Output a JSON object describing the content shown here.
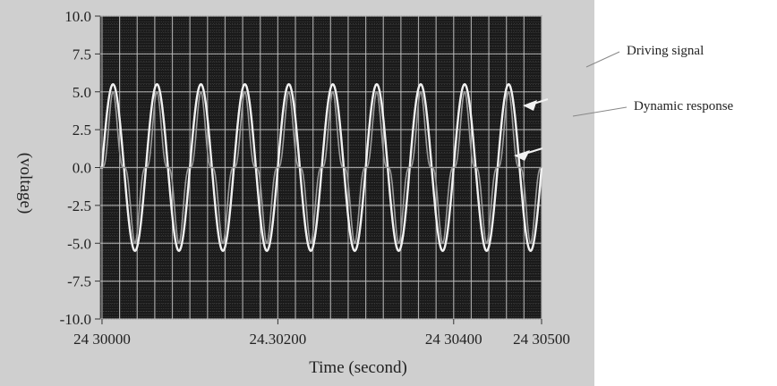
{
  "chart_data": {
    "type": "line",
    "xlabel": "Time (second)",
    "ylabel": "(voltage)",
    "xlim": [
      24.29998,
      24.305
    ],
    "ylim": [
      -10.0,
      10.0
    ],
    "x_tick_labels": [
      {
        "value": 24.3,
        "label": "24 30000"
      },
      {
        "value": 24.302,
        "label": "24.30200"
      },
      {
        "value": 24.304,
        "label": "24 30400"
      },
      {
        "value": 24.305,
        "label": "24 30500"
      }
    ],
    "y_tick_labels": [
      {
        "value": 10.0,
        "label": "10.0"
      },
      {
        "value": 7.5,
        "label": "7.5"
      },
      {
        "value": 5.0,
        "label": "5.0"
      },
      {
        "value": 2.5,
        "label": "2.5"
      },
      {
        "value": 0.0,
        "label": "0.0"
      },
      {
        "value": -2.5,
        "label": "-2.5"
      },
      {
        "value": -5.0,
        "label": "-5.0"
      },
      {
        "value": -7.5,
        "label": "-7.5"
      },
      {
        "value": -10.0,
        "label": "-10.0"
      }
    ],
    "grid": true,
    "background": "#1a1a1a",
    "series": [
      {
        "name": "Driving signal",
        "color": "#f2f2f2",
        "amplitude": 5.5,
        "frequency_hz": 2000,
        "start": 24.3,
        "x": [
          24.3,
          24.30013,
          24.30025,
          24.30038,
          24.3005,
          24.30063,
          24.30075,
          24.30088,
          24.301,
          24.30113,
          24.30125,
          24.30138,
          24.3015,
          24.30163,
          24.30175,
          24.30188,
          24.302,
          24.30213,
          24.30225,
          24.30238,
          24.3025,
          24.30263,
          24.30275,
          24.30288,
          24.303,
          24.30313,
          24.30325,
          24.30338,
          24.3035,
          24.30363,
          24.30375,
          24.30388,
          24.304,
          24.30413,
          24.30425,
          24.30438,
          24.3045,
          24.30463,
          24.30475,
          24.30488,
          24.305
        ],
        "y": [
          0,
          5.5,
          0,
          -5.5,
          0,
          5.5,
          0,
          -5.5,
          0,
          5.5,
          0,
          -5.5,
          0,
          5.5,
          0,
          -5.5,
          0,
          5.5,
          0,
          -5.5,
          0,
          5.5,
          0,
          -5.5,
          0,
          5.5,
          0,
          -5.5,
          0,
          5.5,
          0,
          -5.5,
          0,
          5.5,
          0,
          -5.5,
          0,
          5.5,
          0,
          -5.5,
          0
        ]
      },
      {
        "name": "Dynamic response",
        "color": "#9a9a9a",
        "amplitude": 5.0,
        "frequency_hz": 2000,
        "start": 24.3,
        "x": [
          24.3,
          24.30013,
          24.30025,
          24.30038,
          24.3005
        ],
        "y": [
          0,
          5.0,
          0,
          -5.0,
          0
        ]
      }
    ],
    "annotations": [
      {
        "text": "Driving signal",
        "target_series": "Driving signal"
      },
      {
        "text": "Dynamic response",
        "target_series": "Dynamic response"
      }
    ]
  }
}
